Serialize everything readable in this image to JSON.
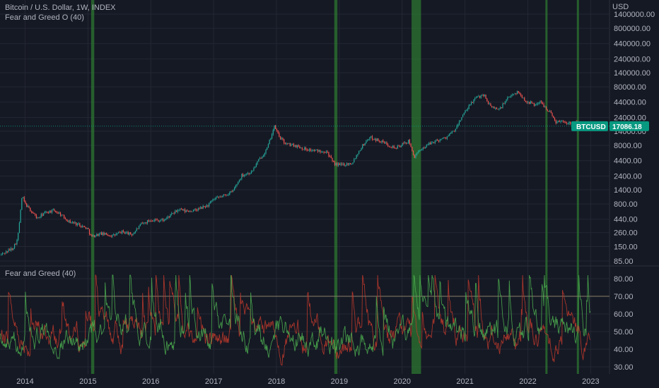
{
  "header": {
    "title": "Bitcoin / U.S. Dollar, 1W, INDEX",
    "overlay_indicator": "Fear and Greed O (40)",
    "oscillator_indicator": "Fear and Greed (40)"
  },
  "colors": {
    "background": "#151924",
    "grid": "#232733",
    "up_candle": "#26a69a",
    "down_candle": "#ef5350",
    "highlight": "#2e7d32",
    "greed_line": "#c0392b",
    "fear_line": "#4caf50",
    "threshold_line": "#8a7f6a",
    "price_badge": "#089981"
  },
  "chart_data": [
    {
      "type": "candlestick",
      "title": "Bitcoin / U.S. Dollar, 1W, INDEX",
      "currency": "USD",
      "scale": "log",
      "x_range": [
        2013.6,
        2023.3
      ],
      "y_range": [
        85,
        1400000
      ],
      "y_ticks": [
        "1400000.00",
        "800000.00",
        "440000.00",
        "240000.00",
        "140000.00",
        "80000.00",
        "44000.00",
        "24000.00",
        "14000.00",
        "8000.00",
        "4400.00",
        "2400.00",
        "1400.00",
        "800.00",
        "440.00",
        "260.00",
        "150.00",
        "85.00"
      ],
      "y_tick_values": [
        1400000,
        800000,
        440000,
        240000,
        140000,
        80000,
        44000,
        24000,
        14000,
        8000,
        4400,
        2400,
        1400,
        800,
        440,
        260,
        150,
        85
      ],
      "last_price": {
        "label": "BTCUSD",
        "value": "17086.18",
        "numeric": 17086.18
      },
      "price_path": [
        [
          2013.62,
          110
        ],
        [
          2013.8,
          140
        ],
        [
          2013.88,
          200
        ],
        [
          2013.92,
          500
        ],
        [
          2013.95,
          1100
        ],
        [
          2014.0,
          800
        ],
        [
          2014.1,
          600
        ],
        [
          2014.2,
          450
        ],
        [
          2014.3,
          560
        ],
        [
          2014.45,
          620
        ],
        [
          2014.55,
          550
        ],
        [
          2014.7,
          400
        ],
        [
          2014.85,
          360
        ],
        [
          2015.0,
          300
        ],
        [
          2015.05,
          220
        ],
        [
          2015.2,
          250
        ],
        [
          2015.4,
          230
        ],
        [
          2015.55,
          270
        ],
        [
          2015.7,
          240
        ],
        [
          2015.85,
          360
        ],
        [
          2016.0,
          430
        ],
        [
          2016.2,
          420
        ],
        [
          2016.45,
          650
        ],
        [
          2016.55,
          600
        ],
        [
          2016.7,
          620
        ],
        [
          2016.9,
          750
        ],
        [
          2017.0,
          950
        ],
        [
          2017.15,
          1100
        ],
        [
          2017.3,
          1300
        ],
        [
          2017.45,
          2500
        ],
        [
          2017.6,
          2800
        ],
        [
          2017.72,
          4500
        ],
        [
          2017.85,
          7000
        ],
        [
          2017.93,
          13000
        ],
        [
          2017.97,
          17000
        ],
        [
          2018.05,
          11000
        ],
        [
          2018.15,
          8500
        ],
        [
          2018.3,
          8000
        ],
        [
          2018.45,
          7000
        ],
        [
          2018.6,
          6500
        ],
        [
          2018.8,
          6400
        ],
        [
          2018.9,
          4000
        ],
        [
          2019.0,
          3700
        ],
        [
          2019.2,
          4000
        ],
        [
          2019.35,
          7500
        ],
        [
          2019.48,
          11000
        ],
        [
          2019.6,
          10000
        ],
        [
          2019.75,
          8500
        ],
        [
          2019.9,
          7200
        ],
        [
          2020.1,
          9500
        ],
        [
          2020.2,
          5000
        ],
        [
          2020.3,
          7000
        ],
        [
          2020.5,
          9300
        ],
        [
          2020.7,
          11000
        ],
        [
          2020.85,
          15000
        ],
        [
          2020.95,
          25000
        ],
        [
          2021.05,
          35000
        ],
        [
          2021.15,
          50000
        ],
        [
          2021.3,
          60000
        ],
        [
          2021.4,
          37000
        ],
        [
          2021.55,
          33000
        ],
        [
          2021.65,
          47000
        ],
        [
          2021.78,
          63000
        ],
        [
          2021.85,
          65000
        ],
        [
          2021.95,
          47000
        ],
        [
          2022.1,
          40000
        ],
        [
          2022.2,
          44000
        ],
        [
          2022.35,
          30000
        ],
        [
          2022.45,
          20000
        ],
        [
          2022.55,
          21000
        ],
        [
          2022.65,
          19500
        ],
        [
          2022.8,
          20000
        ],
        [
          2022.88,
          16500
        ],
        [
          2022.97,
          17086
        ]
      ],
      "highlight_zones": [
        [
          2015.05,
          2015.1
        ],
        [
          2018.92,
          2018.97
        ],
        [
          2020.15,
          2020.3
        ],
        [
          2022.28,
          2022.31
        ],
        [
          2022.78,
          2022.81
        ]
      ]
    },
    {
      "type": "line",
      "title": "Fear and Greed (40)",
      "x_range": [
        2013.6,
        2023.3
      ],
      "y_range": [
        28,
        86
      ],
      "y_ticks": [
        "80.00",
        "70.00",
        "60.00",
        "50.00",
        "40.00",
        "30.00"
      ],
      "y_tick_values": [
        80,
        70,
        60,
        50,
        40,
        30
      ],
      "threshold": 70,
      "series": [
        {
          "key": "greed",
          "color": "#c0392b"
        },
        {
          "key": "fear",
          "color": "#4caf50"
        }
      ]
    }
  ],
  "xaxis": {
    "ticks": [
      "2014",
      "2015",
      "2016",
      "2017",
      "2018",
      "2019",
      "2020",
      "2021",
      "2022",
      "2023"
    ],
    "tick_values": [
      2014.0,
      2015.0,
      2016.0,
      2017.0,
      2018.0,
      2019.0,
      2020.0,
      2021.0,
      2022.0,
      2023.0
    ]
  }
}
